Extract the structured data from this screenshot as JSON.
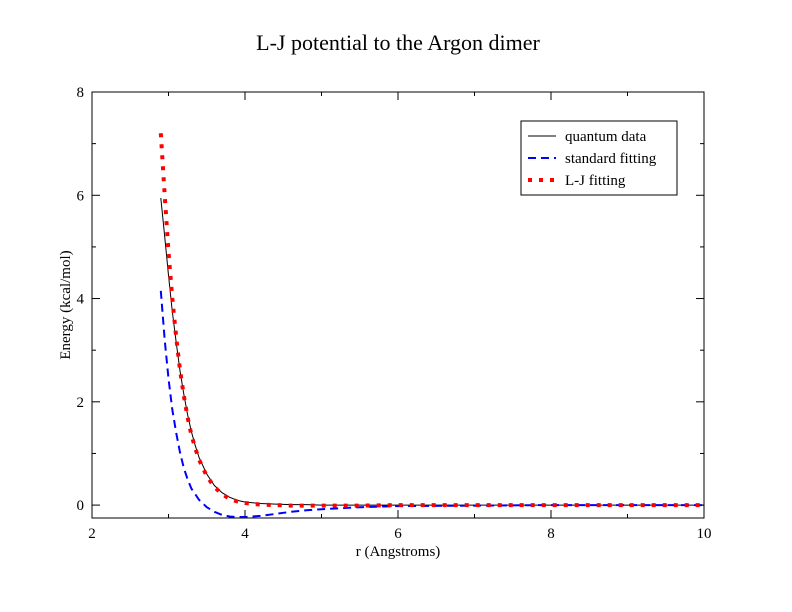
{
  "chart_data": {
    "type": "line",
    "title": "L-J potential to the Argon dimer",
    "xlabel": "r (Angstroms)",
    "ylabel": "Energy (kcal/mol)",
    "xlim": [
      2,
      10
    ],
    "ylim": [
      -0.25,
      8
    ],
    "x_ticks": [
      2,
      4,
      6,
      8,
      10
    ],
    "y_ticks": [
      0,
      2,
      4,
      6,
      8
    ],
    "legend_position": "top-right",
    "grid": false,
    "series": [
      {
        "name": "quantum data",
        "color": "#000000",
        "style": "solid",
        "x": [
          2.9,
          2.95,
          3.0,
          3.05,
          3.1,
          3.15,
          3.2,
          3.25,
          3.3,
          3.35,
          3.4,
          3.5,
          3.6,
          3.7,
          3.8,
          3.9,
          4.0,
          4.2,
          4.4,
          4.6,
          4.8,
          5.0,
          5.5,
          6.0,
          7.0,
          8.0,
          9.0,
          10.0
        ],
        "y": [
          5.95,
          5.2,
          4.45,
          3.75,
          3.15,
          2.6,
          2.15,
          1.75,
          1.42,
          1.15,
          0.92,
          0.6,
          0.38,
          0.24,
          0.15,
          0.09,
          0.06,
          0.03,
          0.02,
          0.01,
          0.01,
          0.0,
          0.0,
          0.0,
          0.0,
          0.0,
          0.0,
          0.0
        ]
      },
      {
        "name": "standard fitting",
        "color": "#0000ff",
        "style": "dashed",
        "x": [
          2.9,
          2.95,
          3.0,
          3.05,
          3.1,
          3.15,
          3.2,
          3.25,
          3.3,
          3.4,
          3.5,
          3.6,
          3.7,
          3.8,
          3.9,
          4.0,
          4.2,
          4.4,
          4.6,
          4.8,
          5.0,
          5.5,
          6.0,
          7.0,
          8.0,
          9.0,
          10.0
        ],
        "y": [
          4.15,
          3.2,
          2.45,
          1.85,
          1.4,
          1.02,
          0.72,
          0.5,
          0.32,
          0.1,
          -0.04,
          -0.13,
          -0.19,
          -0.22,
          -0.23,
          -0.23,
          -0.21,
          -0.17,
          -0.13,
          -0.1,
          -0.08,
          -0.04,
          -0.02,
          -0.01,
          0.0,
          0.0,
          0.0
        ]
      },
      {
        "name": "L-J fitting",
        "color": "#ff0000",
        "style": "dotted",
        "x": [
          2.9,
          2.95,
          3.0,
          3.05,
          3.1,
          3.15,
          3.2,
          3.25,
          3.3,
          3.35,
          3.4,
          3.5,
          3.6,
          3.7,
          3.8,
          3.9,
          4.0,
          4.2,
          4.4,
          4.6,
          4.8,
          5.0,
          5.5,
          6.0,
          7.0,
          8.0,
          9.0,
          10.0
        ],
        "y": [
          7.2,
          6.0,
          4.9,
          4.0,
          3.25,
          2.62,
          2.12,
          1.7,
          1.36,
          1.1,
          0.88,
          0.56,
          0.35,
          0.21,
          0.12,
          0.07,
          0.04,
          0.01,
          0.0,
          -0.01,
          -0.01,
          -0.01,
          -0.01,
          0.0,
          0.0,
          0.0,
          0.0,
          0.0
        ]
      }
    ]
  }
}
